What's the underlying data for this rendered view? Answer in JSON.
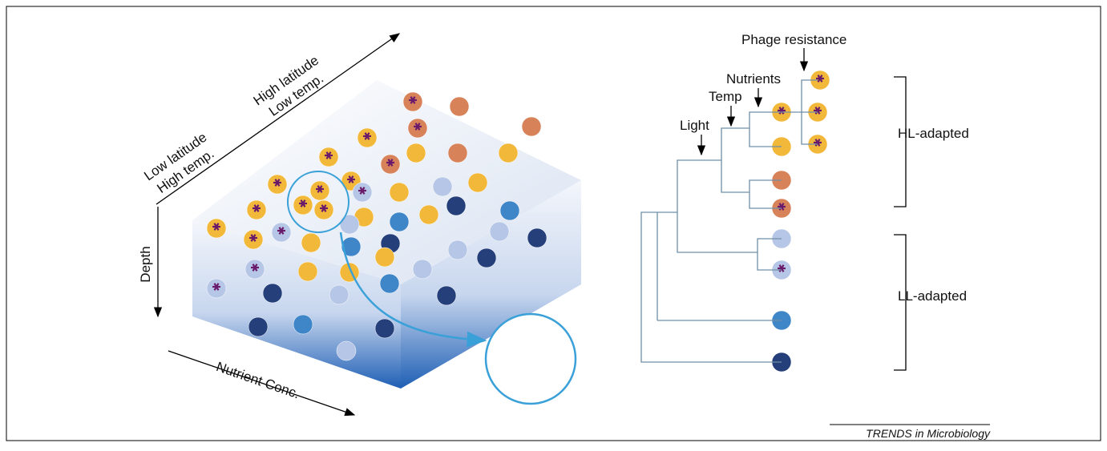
{
  "axes": {
    "top_right": [
      "High latitude",
      "Low temp."
    ],
    "top_left": [
      "Low latitude",
      "High temp."
    ],
    "depth": "Depth",
    "nutrient": "Nutrient Conc."
  },
  "tree": {
    "phage": "Phage resistance",
    "nutrients": "Nutrients",
    "temp": "Temp",
    "light": "Light"
  },
  "clades": {
    "hl": "HL-adapted",
    "ll": "LL-adapted"
  },
  "footer": "TRENDS in Microbiology"
}
